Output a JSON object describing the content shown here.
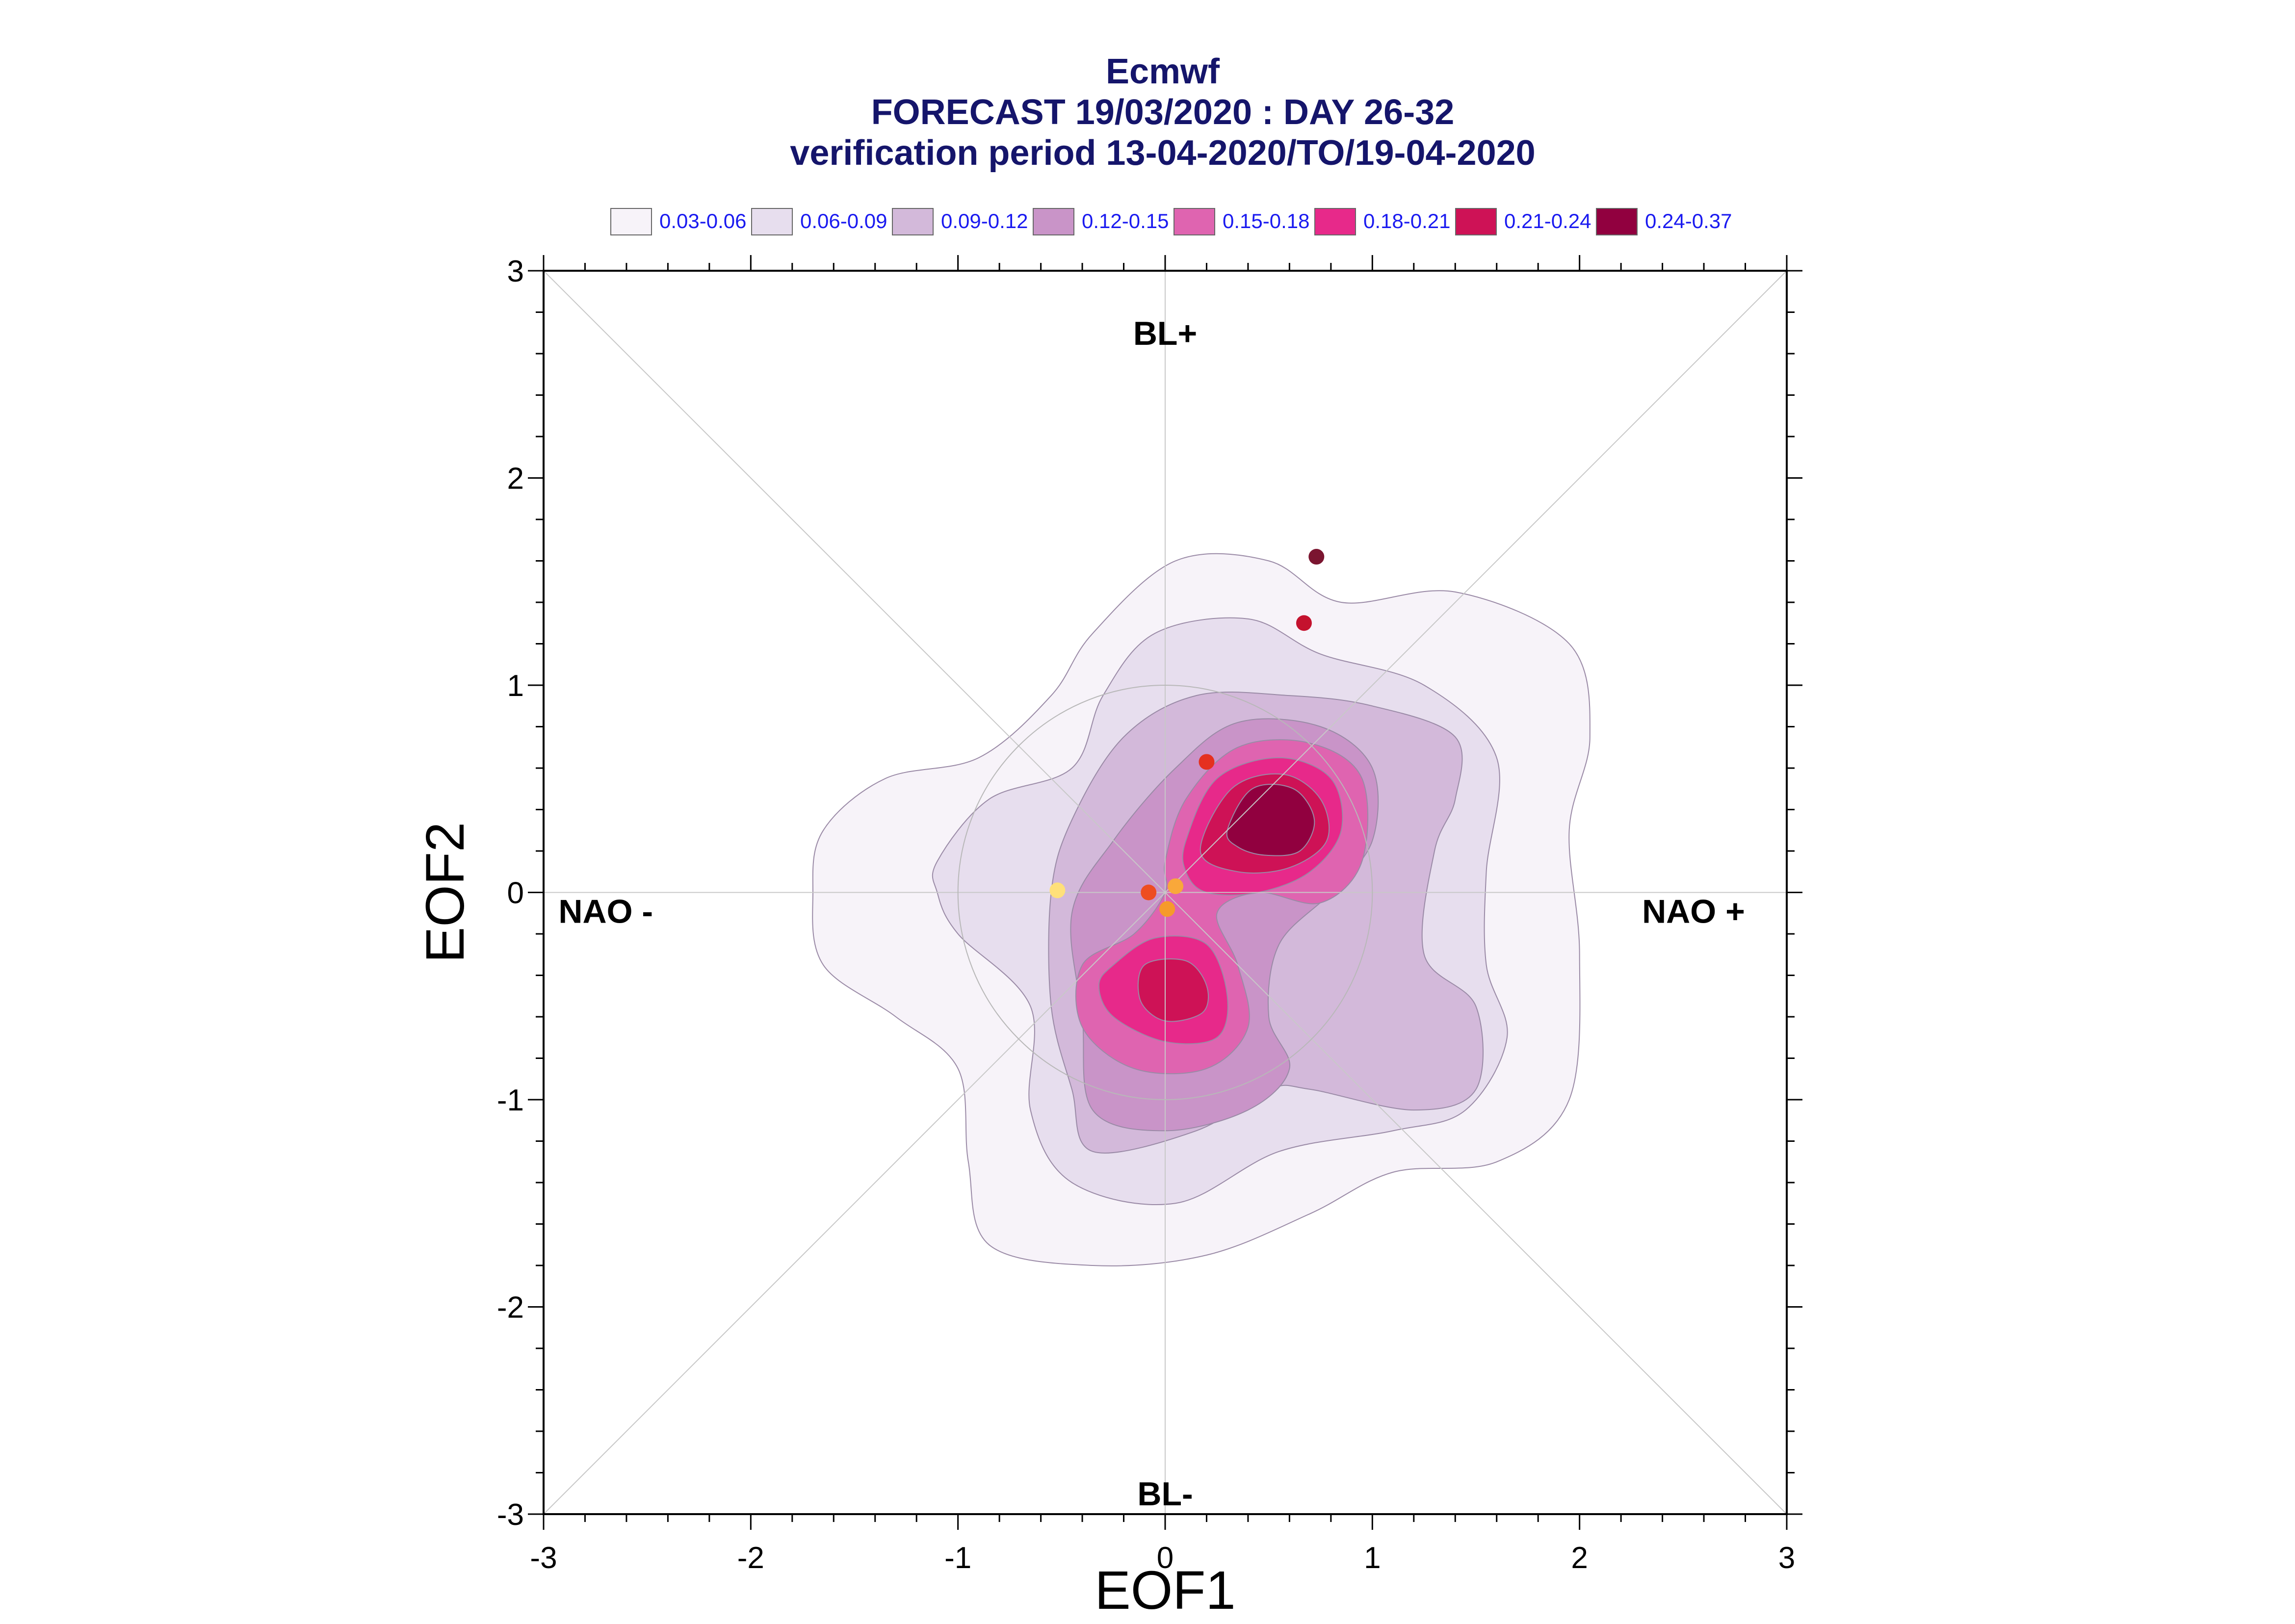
{
  "title_lines": [
    "Ecmwf",
    "FORECAST 19/03/2020 : DAY 26-32",
    "verification period 13-04-2020/TO/19-04-2020"
  ],
  "legend": [
    {
      "label": "0.03-0.06",
      "color": "#f7f3f9"
    },
    {
      "label": "0.06-0.09",
      "color": "#e7deee"
    },
    {
      "label": "0.09-0.12",
      "color": "#d3b9da"
    },
    {
      "label": "0.12-0.15",
      "color": "#c994c8"
    },
    {
      "label": "0.15-0.18",
      "color": "#df64b0"
    },
    {
      "label": "0.18-0.21",
      "color": "#e7298a"
    },
    {
      "label": "0.21-0.24",
      "color": "#ce1256"
    },
    {
      "label": "0.24-0.37",
      "color": "#91003f"
    }
  ],
  "chart_data": {
    "type": "contour-scatter",
    "xlabel": "EOF1",
    "ylabel": "EOF2",
    "xlim": [
      -3,
      3
    ],
    "ylim": [
      -3,
      3
    ],
    "xticks": [
      -3,
      -2,
      -1,
      0,
      1,
      2,
      3
    ],
    "yticks": [
      -3,
      -2,
      -1,
      0,
      1,
      2,
      3
    ],
    "regime_labels": [
      {
        "text": "BL+",
        "x": 0,
        "y": 2.7
      },
      {
        "text": "BL-",
        "x": 0,
        "y": -2.9
      },
      {
        "text": "NAO -",
        "x": -2.7,
        "y": -0.09
      },
      {
        "text": "NAO +",
        "x": 2.55,
        "y": -0.09
      }
    ],
    "reference_circle": {
      "cx": 0,
      "cy": 0,
      "r": 1.0
    },
    "contours": [
      {
        "level": "0.03-0.06",
        "color": "#f7f3f9",
        "shape": [
          [
            -1.65,
            0.3
          ],
          [
            -1.35,
            0.55
          ],
          [
            -0.9,
            0.65
          ],
          [
            -0.55,
            0.95
          ],
          [
            -0.35,
            1.25
          ],
          [
            0.05,
            1.6
          ],
          [
            0.5,
            1.6
          ],
          [
            0.85,
            1.4
          ],
          [
            1.4,
            1.45
          ],
          [
            1.95,
            1.2
          ],
          [
            2.05,
            0.75
          ],
          [
            1.95,
            0.3
          ],
          [
            2.0,
            -0.3
          ],
          [
            1.95,
            -1.0
          ],
          [
            1.6,
            -1.3
          ],
          [
            1.1,
            -1.35
          ],
          [
            0.7,
            -1.55
          ],
          [
            0.2,
            -1.75
          ],
          [
            -0.35,
            -1.8
          ],
          [
            -0.85,
            -1.7
          ],
          [
            -0.95,
            -1.3
          ],
          [
            -1.0,
            -0.85
          ],
          [
            -1.3,
            -0.6
          ],
          [
            -1.65,
            -0.35
          ],
          [
            -1.7,
            0.0
          ]
        ]
      },
      {
        "level": "0.06-0.09",
        "color": "#e7deee",
        "shape": [
          [
            -1.1,
            0.15
          ],
          [
            -0.85,
            0.45
          ],
          [
            -0.45,
            0.6
          ],
          [
            -0.3,
            0.95
          ],
          [
            -0.05,
            1.25
          ],
          [
            0.4,
            1.32
          ],
          [
            0.75,
            1.15
          ],
          [
            1.25,
            1.0
          ],
          [
            1.6,
            0.65
          ],
          [
            1.55,
            0.1
          ],
          [
            1.55,
            -0.35
          ],
          [
            1.65,
            -0.7
          ],
          [
            1.45,
            -1.05
          ],
          [
            1.1,
            -1.15
          ],
          [
            0.55,
            -1.25
          ],
          [
            0.05,
            -1.5
          ],
          [
            -0.45,
            -1.4
          ],
          [
            -0.65,
            -1.05
          ],
          [
            -0.65,
            -0.55
          ],
          [
            -1.0,
            -0.2
          ],
          [
            -1.1,
            0.0
          ]
        ]
      },
      {
        "level": "0.09-0.12",
        "color": "#d3b9da",
        "shape": [
          [
            -0.55,
            0.0
          ],
          [
            -0.45,
            0.35
          ],
          [
            -0.2,
            0.75
          ],
          [
            0.15,
            0.95
          ],
          [
            0.6,
            0.95
          ],
          [
            1.0,
            0.9
          ],
          [
            1.4,
            0.75
          ],
          [
            1.4,
            0.45
          ],
          [
            1.3,
            0.2
          ],
          [
            1.25,
            -0.3
          ],
          [
            1.5,
            -0.55
          ],
          [
            1.5,
            -0.95
          ],
          [
            1.2,
            -1.05
          ],
          [
            0.7,
            -0.95
          ],
          [
            0.5,
            -0.95
          ],
          [
            0.15,
            -1.15
          ],
          [
            -0.35,
            -1.25
          ],
          [
            -0.45,
            -0.95
          ],
          [
            -0.55,
            -0.55
          ]
        ]
      },
      {
        "level": "0.12-0.15",
        "color": "#c994c8",
        "shape": [
          [
            -0.45,
            -0.1
          ],
          [
            -0.25,
            0.25
          ],
          [
            0.05,
            0.6
          ],
          [
            0.35,
            0.82
          ],
          [
            0.75,
            0.8
          ],
          [
            1.0,
            0.6
          ],
          [
            1.0,
            0.25
          ],
          [
            0.8,
            0.0
          ],
          [
            0.55,
            -0.25
          ],
          [
            0.5,
            -0.6
          ],
          [
            0.6,
            -0.85
          ],
          [
            0.4,
            -1.05
          ],
          [
            0.0,
            -1.15
          ],
          [
            -0.35,
            -1.05
          ],
          [
            -0.4,
            -0.6
          ]
        ]
      },
      {
        "level": "0.15-0.18",
        "color": "#df64b0",
        "shape": [
          [
            0.0,
            0.15
          ],
          [
            0.1,
            0.45
          ],
          [
            0.35,
            0.7
          ],
          [
            0.7,
            0.72
          ],
          [
            0.95,
            0.55
          ],
          [
            0.95,
            0.15
          ],
          [
            0.75,
            -0.05
          ],
          [
            0.45,
            0.0
          ],
          [
            0.25,
            -0.1
          ],
          [
            0.35,
            -0.35
          ],
          [
            0.4,
            -0.65
          ],
          [
            0.2,
            -0.85
          ],
          [
            -0.15,
            -0.85
          ],
          [
            -0.4,
            -0.65
          ],
          [
            -0.4,
            -0.35
          ],
          [
            -0.15,
            -0.2
          ],
          [
            0.0,
            0.0
          ]
        ]
      },
      {
        "level": "0.18-0.21",
        "color": "#e7298a",
        "shape": [
          [
            0.1,
            0.25
          ],
          [
            0.25,
            0.55
          ],
          [
            0.55,
            0.65
          ],
          [
            0.8,
            0.55
          ],
          [
            0.85,
            0.3
          ],
          [
            0.7,
            0.1
          ],
          [
            0.45,
            0.0
          ],
          [
            0.2,
            0.0
          ],
          [
            0.1,
            0.1
          ]
        ]
      },
      {
        "level": "0.18-0.21",
        "color": "#e7298a",
        "shape": [
          [
            -0.25,
            -0.35
          ],
          [
            -0.05,
            -0.22
          ],
          [
            0.2,
            -0.25
          ],
          [
            0.3,
            -0.5
          ],
          [
            0.25,
            -0.7
          ],
          [
            0.0,
            -0.72
          ],
          [
            -0.25,
            -0.6
          ],
          [
            -0.32,
            -0.45
          ]
        ]
      },
      {
        "level": "0.21-0.24",
        "color": "#ce1256",
        "shape": [
          [
            0.17,
            0.2
          ],
          [
            0.32,
            0.5
          ],
          [
            0.57,
            0.57
          ],
          [
            0.75,
            0.45
          ],
          [
            0.78,
            0.25
          ],
          [
            0.6,
            0.12
          ],
          [
            0.35,
            0.1
          ]
        ]
      },
      {
        "level": "0.21-0.24",
        "color": "#ce1256",
        "shape": [
          [
            -0.1,
            -0.35
          ],
          [
            0.1,
            -0.33
          ],
          [
            0.2,
            -0.45
          ],
          [
            0.18,
            -0.58
          ],
          [
            0.0,
            -0.62
          ],
          [
            -0.12,
            -0.52
          ]
        ]
      },
      {
        "level": "0.24-0.37",
        "color": "#91003f",
        "shape": [
          [
            0.3,
            0.3
          ],
          [
            0.42,
            0.5
          ],
          [
            0.62,
            0.5
          ],
          [
            0.72,
            0.35
          ],
          [
            0.65,
            0.2
          ],
          [
            0.48,
            0.18
          ],
          [
            0.35,
            0.22
          ]
        ]
      }
    ],
    "points": [
      {
        "x": 0.73,
        "y": 1.62,
        "color": "#7b1530"
      },
      {
        "x": 0.67,
        "y": 1.3,
        "color": "#c4122e"
      },
      {
        "x": 0.2,
        "y": 0.63,
        "color": "#e5301f"
      },
      {
        "x": -0.08,
        "y": 0.0,
        "color": "#ee4d22"
      },
      {
        "x": 0.05,
        "y": 0.03,
        "color": "#f9a83a"
      },
      {
        "x": 0.01,
        "y": -0.08,
        "color": "#f69a2b"
      },
      {
        "x": -0.52,
        "y": 0.01,
        "color": "#ffe07a"
      }
    ]
  }
}
